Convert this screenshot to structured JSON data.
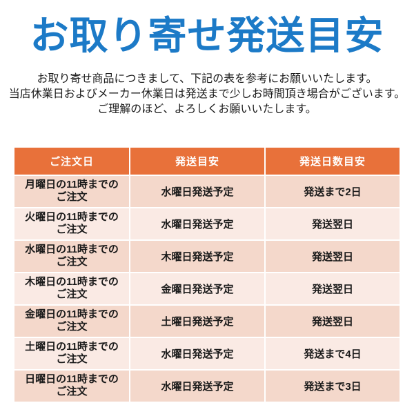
{
  "page": {
    "title": "お取り寄せ発送目安",
    "intro_lines": [
      "お取り寄せ商品につきまして、下記の表を参考にお願いいたします。",
      "当店休業日およびメーカー休業日は発送まで少しお時間頂き場合がございます。",
      "ご理解のほど、よろしくお願いいたします。"
    ]
  },
  "table": {
    "headers": [
      "ご注文日",
      "発送目安",
      "発送日数目安"
    ],
    "rows": [
      {
        "order": "月曜日の11時までの\nご注文",
        "ship": "水曜日発送予定",
        "days": "発送まで2日",
        "days_highlight": false
      },
      {
        "order": "火曜日の11時までの\nご注文",
        "ship": "水曜日発送予定",
        "days": "発送翌日",
        "days_highlight": true
      },
      {
        "order": "水曜日の11時までの\nご注文",
        "ship": "木曜日発送予定",
        "days": "発送翌日",
        "days_highlight": true
      },
      {
        "order": "木曜日の11時までの\nご注文",
        "ship": "金曜日発送予定",
        "days": "発送翌日",
        "days_highlight": true
      },
      {
        "order": "金曜日の11時までの\nご注文",
        "ship": "土曜日発送予定",
        "days": "発送翌日",
        "days_highlight": true
      },
      {
        "order": "土曜日の11時までの\nご注文",
        "ship": "水曜日発送予定",
        "days": "発送まで4日",
        "days_highlight": false
      },
      {
        "order": "日曜日の11時までの\nご注文",
        "ship": "水曜日発送予定",
        "days": "発送まで3日",
        "days_highlight": false
      }
    ]
  },
  "colors": {
    "title_blue": "#1c7ac7",
    "header_orange": "#e8713a",
    "row_dark_pink": "#f4d8cb",
    "row_light_pink": "#faeae4",
    "alert_red": "#de1e1e",
    "header_text": "#ffffff",
    "body_text": "#1a1a1a"
  }
}
